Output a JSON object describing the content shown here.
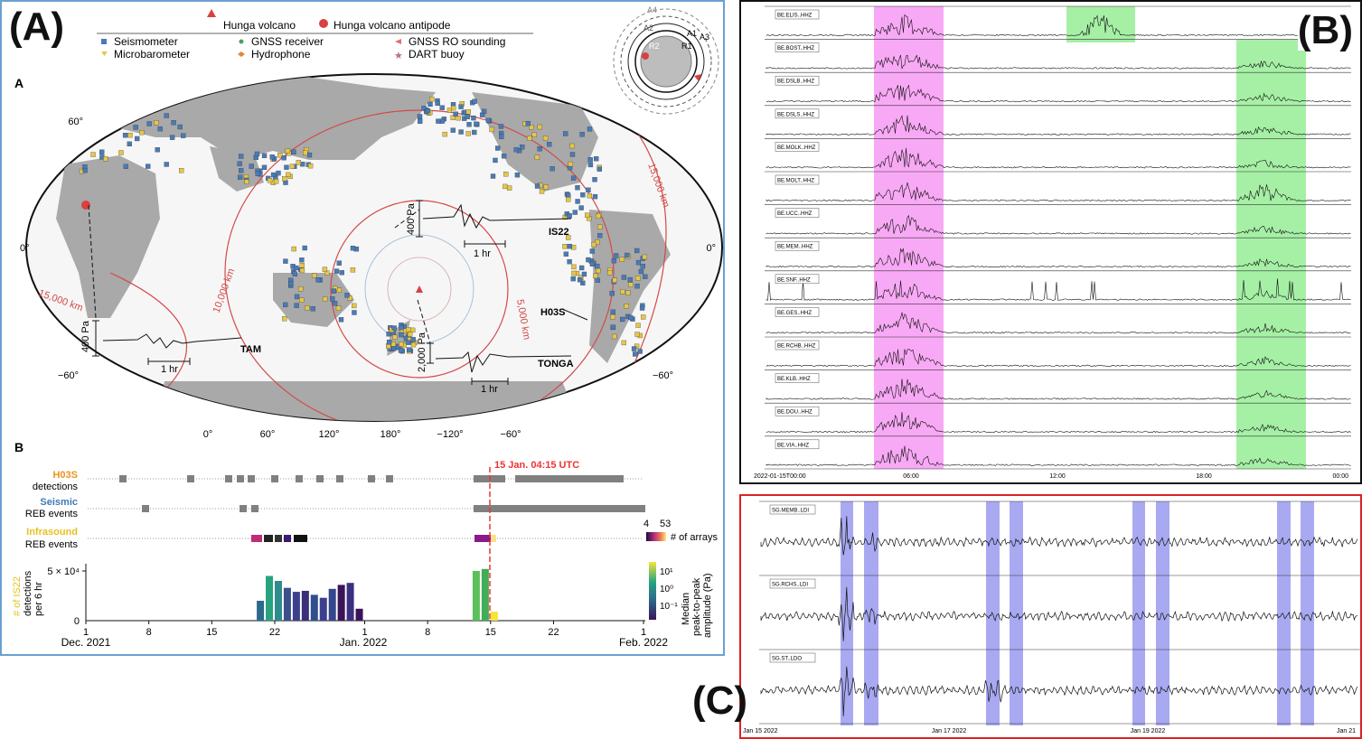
{
  "panel_a": {
    "big_label": "(A)",
    "legend": {
      "volcano": "Hunga volcano",
      "antipode": "Hunga volcano antipode",
      "items": [
        "Seismometer",
        "Microbarometer",
        "GNSS receiver",
        "Hydrophone",
        "GNSS RO sounding",
        "DART buoy"
      ]
    },
    "sub_a": "A",
    "lat_labels": [
      "60°",
      "0°",
      "−60°"
    ],
    "lon_labels": [
      "0°",
      "60°",
      "120°",
      "180°",
      "−120°",
      "−60°"
    ],
    "rings": [
      "5,000 km",
      "10,000 km",
      "15,000 km",
      "15,000 km"
    ],
    "waveforms": {
      "tam": {
        "station": "TAM",
        "scale": "400 Pa",
        "time": "1 hr"
      },
      "is22": {
        "station": "IS22",
        "scale": "400 Pa",
        "time": "1 hr"
      },
      "tonga": {
        "station": "TONGA",
        "scale": "2,000 Pa",
        "time": "1 hr"
      },
      "h03s": "H03S"
    },
    "ring_diagram": [
      "A4",
      "A3",
      "A2",
      "A1",
      "R2",
      "R1"
    ],
    "sub_b": "B",
    "rows": [
      {
        "title": "H03S",
        "sub": "detections",
        "color": "#e8941a"
      },
      {
        "title": "Seismic",
        "sub": "REB events",
        "color": "#3d7ab5"
      },
      {
        "title": "Infrasound",
        "sub": "REB events",
        "color": "#e8c020"
      }
    ],
    "event_label": "15 Jan. 04:15 UTC",
    "colorbar1": {
      "min": "4",
      "max": "53",
      "label": "# of arrays"
    },
    "ylabel": [
      "# of IS22",
      "detections",
      "per 6 hr"
    ],
    "yticks": [
      "5 × 10⁴",
      "0"
    ],
    "xticks": [
      "1",
      "8",
      "15",
      "22",
      "1",
      "8",
      "15",
      "22",
      "1"
    ],
    "month_labels": [
      "Dec. 2021",
      "Jan. 2022",
      "Feb. 2022"
    ],
    "colorbar2": {
      "ticks": [
        "10¹",
        "10⁰",
        "10⁻¹"
      ],
      "label": [
        "Median",
        "peak-to-peak",
        "amplitude (Pa)"
      ]
    }
  },
  "panel_b": {
    "big_label": "(B)",
    "stations": [
      "BE.ELIS..HHZ",
      "BE.BOST..HHZ",
      "BE.DSLB..HHZ",
      "BE.DSLS..HHZ",
      "BE.MOLK..HHZ",
      "BE.MOLT..HHZ",
      "BE.UCC..HHZ",
      "BE.MEM..HHZ",
      "BE.SNF..HHZ",
      "BE.GES..HHZ",
      "BE.RCHB..HHZ",
      "BE.KLB..HHZ",
      "BE.DOU..HHZ",
      "BE.VIA..HHZ"
    ],
    "xticks": [
      "2022-01-15T00:00",
      "06:00",
      "12:00",
      "18:00",
      "00:00"
    ]
  },
  "panel_c": {
    "big_label": "(C)",
    "stations": [
      "SG.MEMB..LDI",
      "SG.RCHS..LDI",
      "SG.ST..LDO"
    ],
    "xticks": [
      "Jan 15 2022",
      "Jan 17 2022",
      "Jan 19 2022",
      "Jan 21"
    ]
  },
  "chart_data": [
    {
      "type": "bar",
      "title": "",
      "xlabel": "",
      "ylabel": "# of IS22 detections per 6 hr",
      "x_range": [
        "2021-12-01",
        "2022-02-01"
      ],
      "ylim": [
        0,
        55000
      ],
      "event": "2022-01-15 04:15 UTC",
      "series": [
        {
          "name": "IS22 detections",
          "x": [
            "2021-12-20",
            "2021-12-21",
            "2021-12-22",
            "2021-12-23",
            "2021-12-24",
            "2021-12-25",
            "2021-12-26",
            "2021-12-27",
            "2021-12-28",
            "2021-12-29",
            "2021-12-30",
            "2021-12-31",
            "2022-01-13",
            "2022-01-14",
            "2022-01-15"
          ],
          "values": [
            20000,
            45000,
            40000,
            33000,
            29000,
            30000,
            26000,
            23000,
            32000,
            36000,
            38000,
            12000,
            50000,
            52000,
            9000
          ]
        }
      ]
    },
    {
      "type": "line",
      "title": "",
      "x_range": [
        "2022-01-15T00:00",
        "2022-01-16T00:00"
      ],
      "series_names": [
        "BE.ELIS..HHZ",
        "BE.BOST..HHZ",
        "BE.DSLB..HHZ",
        "BE.DSLS..HHZ",
        "BE.MOLK..HHZ",
        "BE.MOLT..HHZ",
        "BE.UCC..HHZ",
        "BE.MEM..HHZ",
        "BE.SNF..HHZ",
        "BE.GES..HHZ",
        "BE.RCHB..HHZ",
        "BE.KLB..HHZ",
        "BE.DOU..HHZ",
        "BE.VIA..HHZ"
      ],
      "highlight_windows": [
        {
          "color": "#f7a6f5",
          "from": "04:30",
          "to": "07:40"
        },
        {
          "color": "#9ef29e",
          "from": "19:30",
          "to": "22:40"
        }
      ]
    },
    {
      "type": "line",
      "title": "",
      "x_range": [
        "2022-01-15",
        "2022-01-21"
      ],
      "series_names": [
        "SG.MEMB..LDI",
        "SG.RCHS..LDI",
        "SG.ST..LDO"
      ],
      "highlight_windows_color": "#a7a7f0"
    }
  ]
}
